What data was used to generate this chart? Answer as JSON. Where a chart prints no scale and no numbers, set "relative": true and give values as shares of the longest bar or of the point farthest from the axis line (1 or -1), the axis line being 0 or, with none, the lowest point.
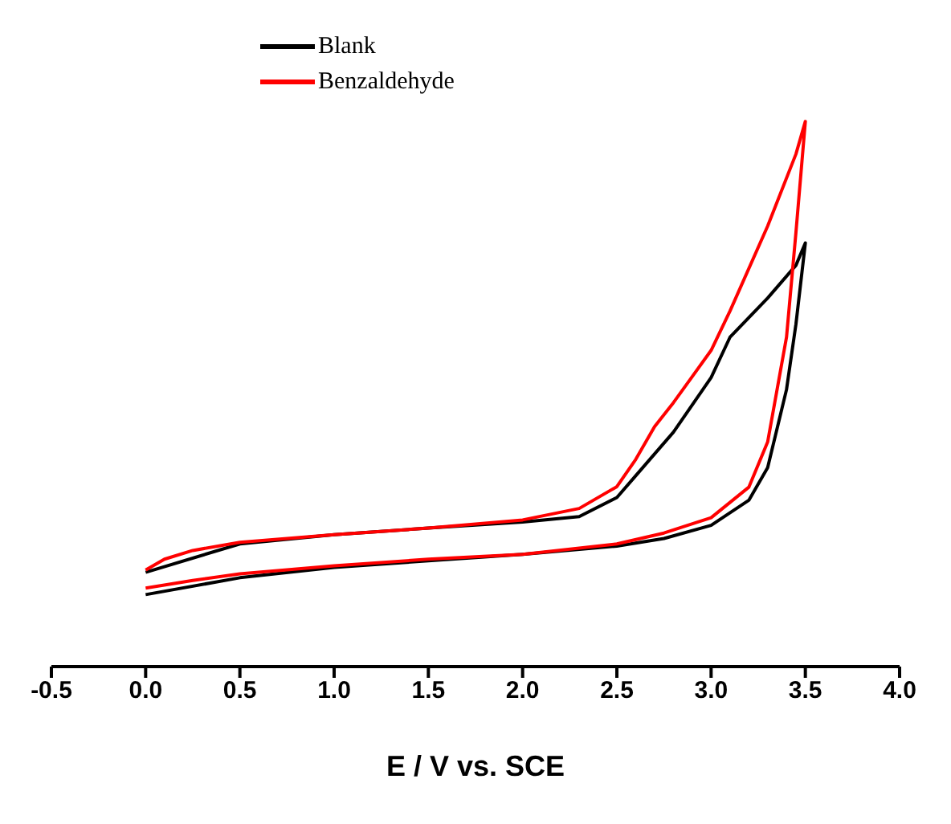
{
  "chart_data": {
    "type": "line",
    "relative": true,
    "xlabel": "E / V vs. SCE",
    "xlim": [
      -0.5,
      4.0
    ],
    "xticks": [
      -0.5,
      {
        "value": 0,
        "label": "0.0"
      },
      0.5,
      {
        "value": 1,
        "label": "1.0"
      },
      1.5,
      {
        "value": 2,
        "label": "2.0"
      },
      2.5,
      {
        "value": 3,
        "label": "3.0"
      },
      3.5,
      {
        "value": 4,
        "label": "4.0"
      }
    ],
    "legend": "top left",
    "marker": "none",
    "line_style": "solid",
    "series": [
      {
        "name": "Blank",
        "color": "#000000",
        "x": [
          0,
          0.5,
          1.0,
          1.5,
          2.0,
          2.5,
          2.75,
          3.0,
          3.2,
          3.3,
          3.4,
          3.45,
          3.5,
          3.45,
          3.3,
          3.1,
          3.0,
          2.8,
          2.6,
          2.5,
          2.3,
          2.0,
          1.5,
          1.0,
          0.5,
          0
        ],
        "values": [
          0.132,
          0.163,
          0.182,
          0.194,
          0.206,
          0.221,
          0.235,
          0.259,
          0.305,
          0.365,
          0.508,
          0.628,
          0.777,
          0.736,
          0.676,
          0.604,
          0.53,
          0.43,
          0.35,
          0.31,
          0.275,
          0.265,
          0.254,
          0.242,
          0.225,
          0.173
        ]
      },
      {
        "name": "Benzaldehyde",
        "color": "#ff0000",
        "x": [
          0,
          0.25,
          0.5,
          1.0,
          1.5,
          2.0,
          2.5,
          2.75,
          3.0,
          3.2,
          3.3,
          3.4,
          3.45,
          3.5,
          3.45,
          3.3,
          3.1,
          3.0,
          2.9,
          2.8,
          2.7,
          2.6,
          2.5,
          2.3,
          2.0,
          1.5,
          1.0,
          0.5,
          0.25,
          0.1,
          0
        ],
        "values": [
          0.144,
          0.158,
          0.17,
          0.185,
          0.197,
          0.206,
          0.225,
          0.245,
          0.273,
          0.329,
          0.412,
          0.604,
          0.796,
          1,
          0.94,
          0.808,
          0.652,
          0.58,
          0.532,
          0.484,
          0.44,
          0.38,
          0.33,
          0.29,
          0.269,
          0.254,
          0.242,
          0.228,
          0.213,
          0.197,
          0.177
        ]
      }
    ]
  }
}
